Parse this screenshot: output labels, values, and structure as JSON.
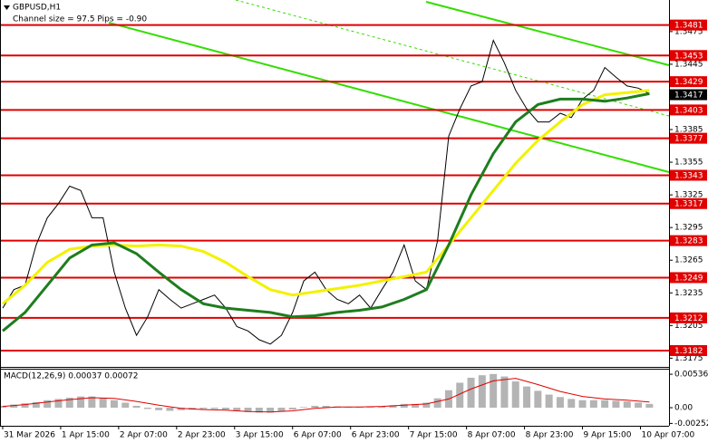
{
  "chart_data": [
    {
      "type": "line",
      "title": "GBPUSD,H1",
      "subtitle": "Channel size = 97.5 Pips = -0.90",
      "xlim": [
        -0.24,
        59.76
      ],
      "xticks": [
        {
          "value": 0,
          "label": "31 Mar 2026"
        },
        {
          "value": 5.2,
          "label": "1 Apr 15:00"
        },
        {
          "value": 10.4,
          "label": "2 Apr 07:00"
        },
        {
          "value": 15.6,
          "label": "2 Apr 23:00"
        },
        {
          "value": 20.8,
          "label": "3 Apr 15:00"
        },
        {
          "value": 26,
          "label": "6 Apr 07:00"
        },
        {
          "value": 31.2,
          "label": "6 Apr 23:00"
        },
        {
          "value": 36.4,
          "label": "7 Apr 15:00"
        },
        {
          "value": 41.6,
          "label": "8 Apr 07:00"
        },
        {
          "value": 46.8,
          "label": "8 Apr 23:00"
        },
        {
          "value": 52,
          "label": "9 Apr 15:00"
        },
        {
          "value": 57.2,
          "label": "10 Apr 07:00"
        }
      ],
      "ylim": [
        1.3167,
        1.3504
      ],
      "yticks": [
        1.3475,
        1.3445,
        1.3385,
        1.3355,
        1.3325,
        1.3295,
        1.3265,
        1.3235,
        1.3205,
        1.3175
      ],
      "grid": false,
      "series": [
        {
          "color": "#000000",
          "x": [
            0,
            1,
            2,
            3,
            4,
            5,
            6,
            7,
            8,
            9,
            10,
            11,
            12,
            13,
            14,
            15,
            16,
            17,
            18,
            19,
            20,
            21,
            22,
            23,
            24,
            25,
            26,
            27,
            28,
            29,
            30,
            31,
            32,
            33,
            34,
            35,
            36,
            37,
            38,
            39,
            40,
            41,
            42,
            43,
            44,
            45,
            46,
            47,
            48,
            49,
            50,
            51,
            52,
            53,
            54,
            55,
            56,
            57,
            58
          ],
          "values": [
            1.3221,
            1.3238,
            1.3242,
            1.3279,
            1.3304,
            1.3317,
            1.3333,
            1.3329,
            1.3304,
            1.3304,
            1.3254,
            1.3221,
            1.3196,
            1.3213,
            1.3238,
            1.3229,
            1.3221,
            1.3225,
            1.3229,
            1.3233,
            1.3221,
            1.3204,
            1.32,
            1.3192,
            1.3188,
            1.3196,
            1.3217,
            1.3246,
            1.3254,
            1.3238,
            1.3229,
            1.3225,
            1.3233,
            1.3221,
            1.3238,
            1.3254,
            1.3279,
            1.3246,
            1.3238,
            1.3283,
            1.3379,
            1.3404,
            1.3425,
            1.3429,
            1.3467,
            1.3446,
            1.3421,
            1.3404,
            1.3392,
            1.3392,
            1.34,
            1.3396,
            1.3413,
            1.3421,
            1.3442,
            1.3433,
            1.3425,
            1.3423,
            1.3418
          ]
        },
        {
          "color": "#f2f200",
          "x": [
            0,
            2,
            4,
            6,
            8,
            10,
            12,
            14,
            16,
            18,
            20,
            22,
            24,
            26,
            28,
            30,
            32,
            34,
            36,
            38,
            40,
            42,
            44,
            46,
            48,
            50,
            52,
            54,
            56,
            58
          ],
          "values": [
            1.3225,
            1.3242,
            1.3263,
            1.3275,
            1.3278,
            1.3279,
            1.3278,
            1.3279,
            1.3278,
            1.3273,
            1.3263,
            1.325,
            1.3238,
            1.3233,
            1.3236,
            1.3239,
            1.3242,
            1.3246,
            1.325,
            1.3254,
            1.3279,
            1.3304,
            1.3329,
            1.3354,
            1.3375,
            1.3392,
            1.3408,
            1.3417,
            1.3419,
            1.3421
          ]
        },
        {
          "color": "#1e7d1e",
          "x": [
            0,
            2,
            4,
            6,
            8,
            10,
            12,
            14,
            16,
            18,
            20,
            22,
            24,
            26,
            28,
            30,
            32,
            34,
            36,
            38,
            40,
            42,
            44,
            46,
            48,
            50,
            52,
            54,
            56,
            58
          ],
          "values": [
            1.32,
            1.3217,
            1.3242,
            1.3267,
            1.3279,
            1.3281,
            1.3271,
            1.3254,
            1.3238,
            1.3225,
            1.3221,
            1.3219,
            1.3217,
            1.3213,
            1.3214,
            1.3217,
            1.3219,
            1.3222,
            1.3229,
            1.3238,
            1.3279,
            1.3325,
            1.3363,
            1.3392,
            1.3408,
            1.3413,
            1.3413,
            1.3411,
            1.3414,
            1.3418
          ]
        }
      ],
      "levels": {
        "color": "#e00000",
        "values": [
          1.3481,
          1.3453,
          1.3429,
          1.3403,
          1.3377,
          1.3343,
          1.3317,
          1.3283,
          1.3249,
          1.3212,
          1.3182
        ]
      },
      "current_price": {
        "color": "#000000",
        "value": 1.3417
      }
    },
    {
      "type": "macd",
      "title": "MACD(12,26,9) 0.00037 0.00072",
      "ylim": [
        -0.0029,
        0.0061
      ],
      "yticks": [
        0.00536,
        {
          "value": 0,
          "label": "0.00"
        },
        -0.00252
      ],
      "histogram": {
        "color": "#b4b4b4",
        "values": [
          0.0003,
          0.0005,
          0.0007,
          0.0009,
          0.0012,
          0.0014,
          0.0016,
          0.0018,
          0.0018,
          0.0016,
          0.0012,
          0.0008,
          0.0003,
          -0.0002,
          -0.0004,
          -0.0005,
          -0.0004,
          -0.0003,
          -0.0002,
          -0.0002,
          -0.0003,
          -0.0005,
          -0.0007,
          -0.0008,
          -0.0008,
          -0.0006,
          -0.0003,
          0.0001,
          0.0003,
          0.0003,
          0.0002,
          0.0001,
          0.0001,
          0.0001,
          0.0002,
          0.0004,
          0.0006,
          0.0006,
          0.0008,
          0.0015,
          0.0028,
          0.004,
          0.0048,
          0.0052,
          0.0054,
          0.005,
          0.0042,
          0.0034,
          0.0027,
          0.0021,
          0.0017,
          0.0014,
          0.0012,
          0.0012,
          0.0012,
          0.0011,
          0.001,
          0.0008,
          0.0006
        ]
      },
      "signal": {
        "color": "#e00000",
        "x": [
          0,
          2,
          4,
          6,
          8,
          10,
          12,
          14,
          16,
          18,
          20,
          22,
          24,
          26,
          28,
          30,
          32,
          34,
          36,
          38,
          40,
          42,
          44,
          46,
          48,
          50,
          52,
          54,
          56,
          58
        ],
        "values": [
          0.0002,
          0.0005,
          0.0009,
          0.0013,
          0.0016,
          0.0015,
          0.001,
          0.0004,
          -0.0001,
          -0.0003,
          -0.0004,
          -0.0006,
          -0.0007,
          -0.0005,
          -0.0001,
          0.0001,
          0.0001,
          0.0002,
          0.0004,
          0.0006,
          0.0014,
          0.003,
          0.0043,
          0.0047,
          0.0037,
          0.0026,
          0.0018,
          0.0014,
          0.0012,
          0.0009
        ]
      }
    }
  ]
}
